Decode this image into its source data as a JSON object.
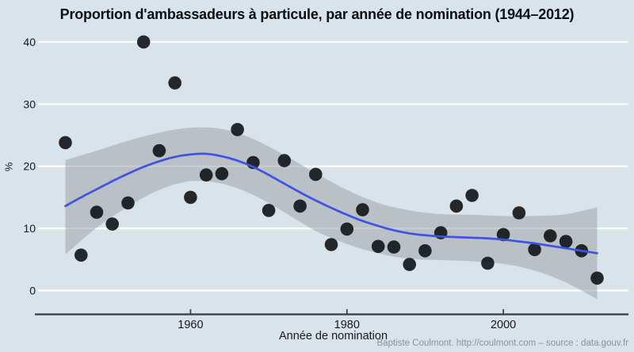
{
  "header": {
    "title": "Proportion d'ambassadeurs à particule, par année de nomination (1944–2012)"
  },
  "footer": {
    "credit": "Baptiste Coulmont. http://coulmont.com – source : data.gouv.fr"
  },
  "chart_data": {
    "type": "scatter",
    "title": "Proportion d'ambassadeurs à particule, par année de nomination (1944–2012)",
    "xlabel": "Année de nomination",
    "ylabel": "%",
    "xlim": [
      1940.5,
      2016
    ],
    "ylim": [
      0,
      40
    ],
    "x_ticks": [
      "1960",
      "1980",
      "2000"
    ],
    "x_tick_years": [
      1960,
      1980,
      2000
    ],
    "y_ticks": [
      "0",
      "10",
      "20",
      "30",
      "40"
    ],
    "y_tick_values": [
      0,
      10,
      20,
      30,
      40
    ],
    "grid": true,
    "legend": "none",
    "series": [
      {
        "name": "proportion-par-annee",
        "type": "scatter",
        "x": [
          1944,
          1946,
          1948,
          1950,
          1952,
          1954,
          1956,
          1958,
          1960,
          1962,
          1964,
          1966,
          1968,
          1970,
          1972,
          1974,
          1976,
          1978,
          1980,
          1982,
          1984,
          1986,
          1988,
          1990,
          1992,
          1994,
          1996,
          1998,
          2000,
          2002,
          2004,
          2006,
          2008,
          2010,
          2012
        ],
        "y": [
          23.8,
          5.7,
          12.6,
          10.7,
          14.1,
          40.0,
          22.5,
          33.4,
          15.0,
          18.6,
          18.8,
          25.9,
          20.6,
          12.9,
          20.9,
          13.6,
          18.7,
          7.4,
          9.9,
          13.0,
          7.1,
          7.0,
          4.2,
          6.4,
          9.3,
          13.6,
          15.3,
          4.4,
          9.0,
          12.5,
          6.6,
          8.8,
          7.9,
          6.4,
          2.0
        ]
      },
      {
        "name": "tendance-loess",
        "type": "line",
        "x": [
          1944,
          1946,
          1948,
          1950,
          1952,
          1954,
          1956,
          1958,
          1960,
          1962,
          1964,
          1966,
          1968,
          1970,
          1972,
          1974,
          1976,
          1978,
          1980,
          1982,
          1984,
          1986,
          1988,
          1990,
          1992,
          1994,
          1996,
          1998,
          2000,
          2002,
          2004,
          2006,
          2008,
          2010,
          2012
        ],
        "y": [
          13.6,
          15.0,
          16.3,
          17.6,
          18.8,
          19.9,
          20.8,
          21.5,
          21.9,
          22.0,
          21.6,
          20.9,
          19.9,
          18.6,
          17.2,
          15.8,
          14.5,
          13.3,
          12.2,
          11.2,
          10.4,
          9.7,
          9.2,
          8.9,
          8.7,
          8.6,
          8.5,
          8.4,
          8.2,
          7.9,
          7.6,
          7.2,
          6.8,
          6.4,
          6.0
        ]
      },
      {
        "name": "intervalle-de-confiance",
        "type": "band",
        "x": [
          1944,
          1948,
          1952,
          1956,
          1960,
          1964,
          1968,
          1972,
          1976,
          1980,
          1984,
          1988,
          1992,
          1996,
          2000,
          2004,
          2008,
          2012
        ],
        "upper": [
          21.0,
          22.5,
          24.1,
          25.4,
          26.2,
          26.0,
          24.4,
          21.8,
          18.9,
          16.2,
          14.1,
          12.9,
          12.3,
          12.2,
          12.0,
          12.0,
          12.3,
          13.4
        ],
        "lower": [
          5.8,
          10.1,
          13.5,
          16.2,
          17.6,
          17.2,
          15.4,
          12.6,
          9.6,
          7.5,
          6.0,
          5.1,
          4.9,
          4.7,
          4.3,
          3.2,
          1.3,
          -1.4
        ]
      }
    ],
    "colors": {
      "background": "#d9e3e9",
      "point": "#15181a",
      "trend_line": "#3e53e3",
      "confidence_band": "rgba(158,164,170,0.55)",
      "gridline": "#fdfefe",
      "axis": "#363c42",
      "tick_text": "#15181a"
    }
  }
}
